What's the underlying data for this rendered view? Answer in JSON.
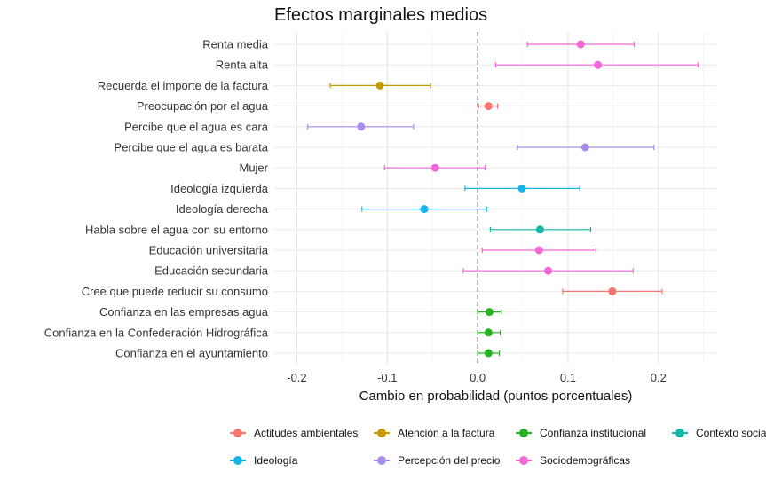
{
  "chart_data": {
    "type": "scatter",
    "subtype": "forest-plot",
    "title": "Efectos marginales medios",
    "xlabel": "Cambio en probabilidad (puntos porcentuales)",
    "ylabel": "",
    "xlim": [
      -0.225,
      0.265
    ],
    "xticks": [
      -0.2,
      -0.1,
      0.0,
      0.1,
      0.2
    ],
    "xtick_labels": [
      "-0.2",
      "-0.1",
      "0.0",
      "0.1",
      "0.2"
    ],
    "reference_line": 0,
    "grid": true,
    "legend_position": "bottom",
    "legend": [
      {
        "name": "Actitudes ambientales",
        "color": "#F8766D"
      },
      {
        "name": "Atención a la factura",
        "color": "#C49A00"
      },
      {
        "name": "Confianza institucional",
        "color": "#26B322"
      },
      {
        "name": "Contexto social",
        "color": "#14B8A8"
      },
      {
        "name": "Ideología",
        "color": "#13B5E8"
      },
      {
        "name": "Percepción del precio",
        "color": "#A98BEA"
      },
      {
        "name": "Sociodemográficas",
        "color": "#F666D6"
      }
    ],
    "points": [
      {
        "label": "Renta media",
        "group": "Sociodemográficas",
        "estimate": 0.114,
        "lower": 0.055,
        "upper": 0.173
      },
      {
        "label": "Renta alta",
        "group": "Sociodemográficas",
        "estimate": 0.133,
        "lower": 0.02,
        "upper": 0.244
      },
      {
        "label": "Recuerda el importe de la factura",
        "group": "Atención a la factura",
        "estimate": -0.108,
        "lower": -0.163,
        "upper": -0.052
      },
      {
        "label": "Preocupación por el agua",
        "group": "Actitudes ambientales",
        "estimate": 0.012,
        "lower": 0.001,
        "upper": 0.022
      },
      {
        "label": "Percibe que el agua es cara",
        "group": "Percepción del precio",
        "estimate": -0.129,
        "lower": -0.188,
        "upper": -0.071
      },
      {
        "label": "Percibe que el agua es barata",
        "group": "Percepción del precio",
        "estimate": 0.119,
        "lower": 0.044,
        "upper": 0.195
      },
      {
        "label": "Mujer",
        "group": "Sociodemográficas",
        "estimate": -0.047,
        "lower": -0.103,
        "upper": 0.008
      },
      {
        "label": "Ideología izquierda",
        "group": "Ideología",
        "estimate": 0.049,
        "lower": -0.014,
        "upper": 0.113
      },
      {
        "label": "Ideología derecha",
        "group": "Ideología",
        "estimate": -0.059,
        "lower": -0.128,
        "upper": 0.01
      },
      {
        "label": "Habla sobre el agua con su entorno",
        "group": "Contexto social",
        "estimate": 0.069,
        "lower": 0.014,
        "upper": 0.125
      },
      {
        "label": "Educación universitaria",
        "group": "Sociodemográficas",
        "estimate": 0.068,
        "lower": 0.005,
        "upper": 0.131
      },
      {
        "label": "Educación secundaria",
        "group": "Sociodemográficas",
        "estimate": 0.078,
        "lower": -0.016,
        "upper": 0.172
      },
      {
        "label": "Cree que puede reducir su consumo",
        "group": "Actitudes ambientales",
        "estimate": 0.149,
        "lower": 0.094,
        "upper": 0.204
      },
      {
        "label": "Confianza en las empresas agua",
        "group": "Confianza institucional",
        "estimate": 0.013,
        "lower": 0.0,
        "upper": 0.026
      },
      {
        "label": "Confianza en la Confederación Hidrográfica",
        "group": "Confianza institucional",
        "estimate": 0.012,
        "lower": 0.0,
        "upper": 0.025
      },
      {
        "label": "Confianza en el ayuntamiento",
        "group": "Confianza institucional",
        "estimate": 0.012,
        "lower": 0.0,
        "upper": 0.024
      }
    ]
  }
}
